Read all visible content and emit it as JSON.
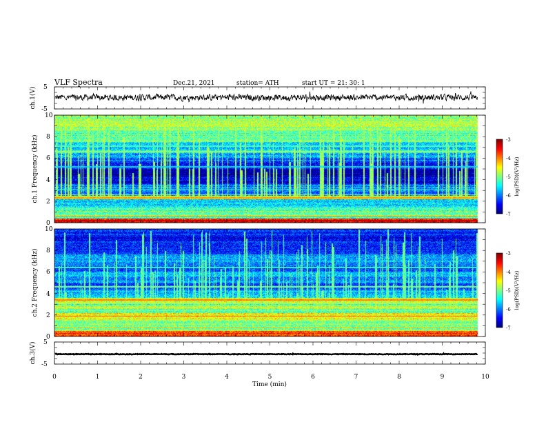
{
  "header": {
    "title": "VLF  Spectra",
    "date": "Dec.21, 2021",
    "station": "station= ATH",
    "start": "start  UT  =    21: 30: 1"
  },
  "chart_data": [
    {
      "type": "line",
      "panel": "ch1-waveform",
      "ylabel": "ch.1(V)",
      "ylim": [
        -5,
        5
      ],
      "yticks": [
        "5",
        "-5"
      ],
      "xlim": [
        0,
        10
      ],
      "series": [
        {
          "baseline": 0.2,
          "noise_amplitude": 1.2
        }
      ],
      "color": "#000000"
    },
    {
      "type": "heatmap",
      "panel": "ch1-spectrogram",
      "ylabel": "ch.1 Frequency (kHz)",
      "ylim": [
        0,
        10
      ],
      "yticks": [
        "10",
        "8",
        "6",
        "4",
        "2",
        "0"
      ],
      "xlim": [
        0,
        10
      ],
      "data_end_min": 9.82,
      "colorbar": {
        "label": "log(PSD)(V²/Hz)",
        "range": [
          -7,
          -3
        ],
        "ticks": [
          "-3",
          "-4",
          "-5",
          "-6",
          "-7"
        ]
      },
      "bands": [
        {
          "from": 0,
          "to": 0.4,
          "level": -3.6
        },
        {
          "from": 0.4,
          "to": 1.4,
          "level": -5.2
        },
        {
          "from": 1.4,
          "to": 2.2,
          "level": -5.6
        },
        {
          "from": 2.2,
          "to": 2.5,
          "level": -4.8
        },
        {
          "from": 2.5,
          "to": 3.6,
          "level": -6.0
        },
        {
          "from": 3.6,
          "to": 4.2,
          "level": -6.6
        },
        {
          "from": 4.2,
          "to": 4.9,
          "level": -6.9
        },
        {
          "from": 4.9,
          "to": 5.6,
          "level": -6.5
        },
        {
          "from": 5.6,
          "to": 6.1,
          "level": -6.1
        },
        {
          "from": 6.1,
          "to": 6.5,
          "level": -5.8
        },
        {
          "from": 6.5,
          "to": 6.7,
          "level": -5.3
        },
        {
          "from": 6.7,
          "to": 7.5,
          "level": -5.7
        },
        {
          "from": 7.5,
          "to": 8.5,
          "level": -5.1
        },
        {
          "from": 8.5,
          "to": 10,
          "level": -4.9
        }
      ],
      "lines": [
        {
          "freq": 0.2,
          "level": -3.3
        },
        {
          "freq": 0.6,
          "level": -4.0
        },
        {
          "freq": 1.0,
          "level": -4.6
        },
        {
          "freq": 2.3,
          "level": -4.1
        },
        {
          "freq": 2.6,
          "level": -4.8
        },
        {
          "freq": 3.1,
          "level": -5.3
        },
        {
          "freq": 5.2,
          "level": -5.6
        },
        {
          "freq": 6.6,
          "level": -4.9
        },
        {
          "freq": 7.1,
          "level": -5.2
        }
      ],
      "bursts": {
        "count": 150,
        "level": -4.9,
        "max_freq_span": [
          4.5,
          10
        ]
      }
    },
    {
      "type": "heatmap",
      "panel": "ch2-spectrogram",
      "ylabel": "ch.2 Frequency (kHz)",
      "ylim": [
        0,
        10
      ],
      "yticks": [
        "10",
        "8",
        "6",
        "4",
        "2",
        "0"
      ],
      "xlim": [
        0,
        10
      ],
      "data_end_min": 9.82,
      "colorbar": {
        "label": "log(PSD)(V²/Hz)",
        "range": [
          -7,
          -3
        ],
        "ticks": [
          "-3",
          "-4",
          "-5",
          "-6",
          "-7"
        ]
      },
      "bands": [
        {
          "from": 0,
          "to": 0.5,
          "level": -3.8
        },
        {
          "from": 0.5,
          "to": 1.5,
          "level": -5.0
        },
        {
          "from": 1.5,
          "to": 2.2,
          "level": -4.5
        },
        {
          "from": 2.2,
          "to": 3.0,
          "level": -5.2
        },
        {
          "from": 3.0,
          "to": 3.6,
          "level": -4.7
        },
        {
          "from": 3.6,
          "to": 4.3,
          "level": -5.7
        },
        {
          "from": 4.3,
          "to": 5.0,
          "level": -6.2
        },
        {
          "from": 5.0,
          "to": 6.0,
          "level": -5.9
        },
        {
          "from": 6.0,
          "to": 6.6,
          "level": -6.3
        },
        {
          "from": 6.6,
          "to": 7.6,
          "level": -5.9
        },
        {
          "from": 7.6,
          "to": 10,
          "level": -6.4
        }
      ],
      "lines": [
        {
          "freq": 0.8,
          "level": -4.2
        },
        {
          "freq": 1.9,
          "level": -3.9
        },
        {
          "freq": 2.7,
          "level": -4.4
        },
        {
          "freq": 3.4,
          "level": -4.0
        },
        {
          "freq": 4.6,
          "level": -5.0
        },
        {
          "freq": 6.4,
          "level": -5.3
        }
      ],
      "bursts": {
        "count": 150,
        "level": -5.1,
        "max_freq_span": [
          4.0,
          10
        ]
      }
    },
    {
      "type": "line",
      "panel": "ch3-waveform",
      "ylabel": "ch.3(V)",
      "ylim": [
        -5,
        5
      ],
      "yticks": [
        "5",
        "-5"
      ],
      "xlim": [
        0,
        10
      ],
      "xlabel": "Time  (min)",
      "xticks": [
        "0",
        "1",
        "2",
        "3",
        "4",
        "5",
        "6",
        "7",
        "8",
        "9",
        "10"
      ],
      "series": [
        {
          "baseline": -0.5,
          "noise_amplitude": 0.12
        }
      ],
      "color": "#000000"
    }
  ]
}
